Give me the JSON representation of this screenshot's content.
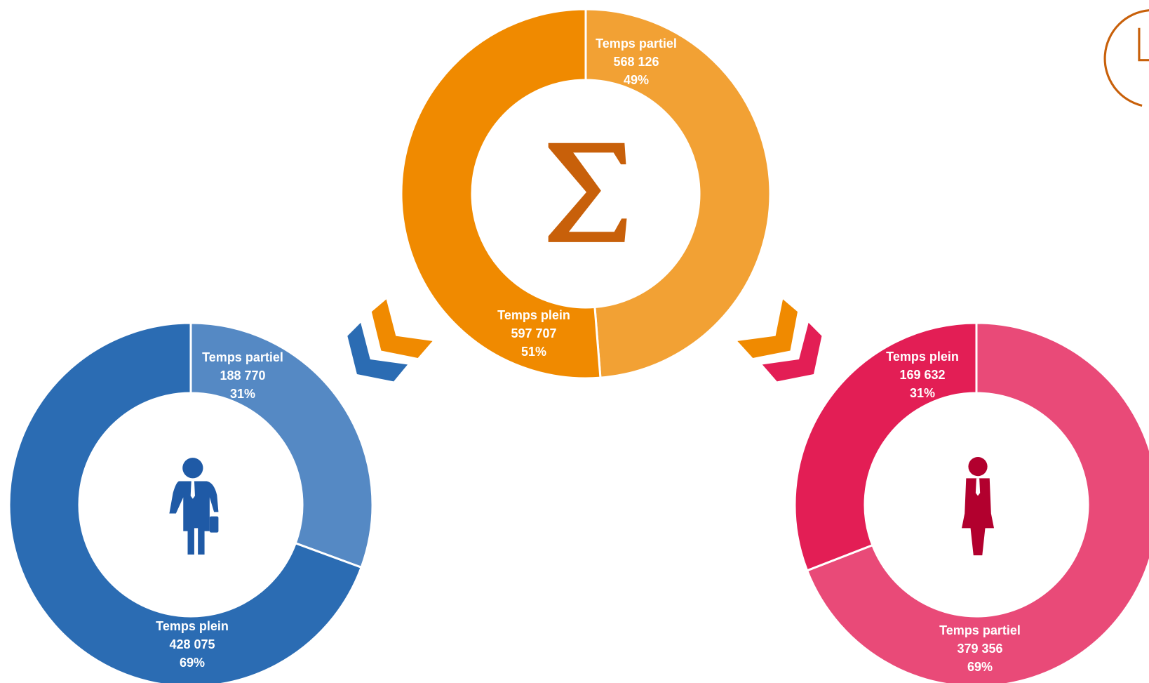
{
  "chart_data": [
    {
      "type": "pie",
      "categories": [
        "Temps partiel",
        "Temps plein"
      ],
      "values": [
        568126,
        597707
      ],
      "value_labels": [
        "568 126",
        "597 707"
      ],
      "percent_labels": [
        "49%",
        "51%"
      ],
      "colors": [
        "#f2a134",
        "#f08a00"
      ]
    },
    {
      "type": "pie",
      "categories": [
        "Temps partiel",
        "Temps plein"
      ],
      "values": [
        188770,
        428075
      ],
      "value_labels": [
        "188 770",
        "428 075"
      ],
      "percent_labels": [
        "31%",
        "69%"
      ],
      "colors": [
        "#5589c4",
        "#2b6cb3"
      ]
    },
    {
      "type": "pie",
      "categories": [
        "Temps partiel",
        "Temps plein"
      ],
      "values": [
        379356,
        169632
      ],
      "value_labels": [
        "379 356",
        "169 632"
      ],
      "percent_labels": [
        "69%",
        "31%"
      ],
      "colors": [
        "#e94a78",
        "#e31e55"
      ]
    }
  ]
}
